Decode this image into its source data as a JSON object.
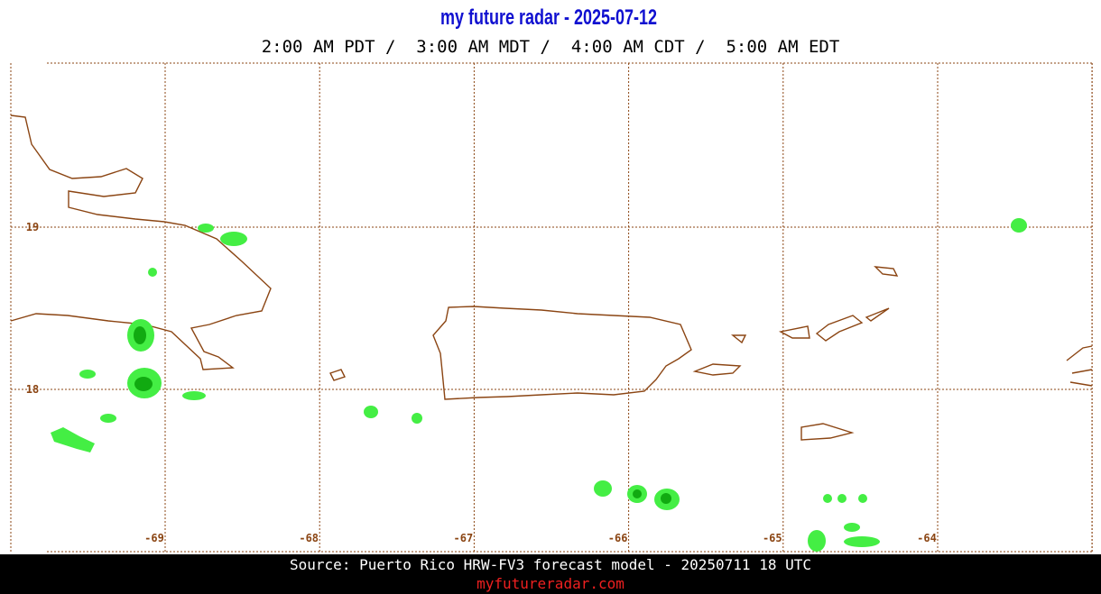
{
  "header": {
    "title": "my future radar - 2025-07-12",
    "times": "2:00 AM PDT /  3:00 AM MDT /  4:00 AM CDT /  5:00 AM EDT"
  },
  "map": {
    "lon_labels": [
      "-69",
      "-68",
      "-67",
      "-66",
      "-65",
      "-64"
    ],
    "lat_labels": [
      "19",
      "18"
    ]
  },
  "footer": {
    "source": "Source: Puerto Rico HRW-FV3 forecast model - 20250711 18 UTC",
    "url": "myfutureradar.com"
  }
}
